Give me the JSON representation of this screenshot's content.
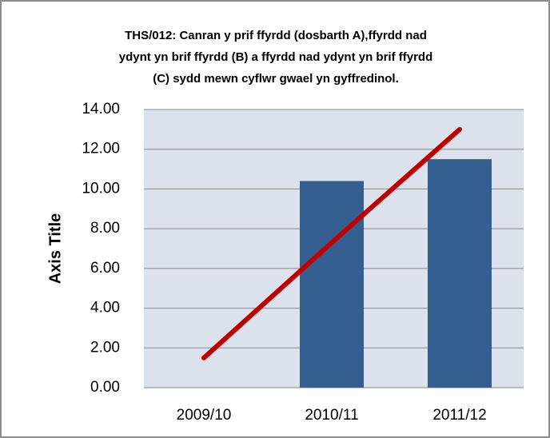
{
  "chart_data": {
    "type": "bar",
    "title": [
      "THS/012:  Canran y prif ffyrdd (dosbarth A),ffyrdd nad",
      "ydynt yn brif ffyrdd (B) a ffyrdd nad ydynt yn brif ffyrdd",
      "(C) sydd mewn cyflwr gwael yn gyffredinol."
    ],
    "y_axis_label": "Axis Title",
    "categories": [
      "2009/10",
      "2010/11",
      "2011/12"
    ],
    "series": [
      {
        "type": "bar",
        "color": "#355f91",
        "values": [
          null,
          10.4,
          11.5
        ]
      },
      {
        "type": "line",
        "color": "#c00000",
        "values": [
          1.5,
          7.3,
          13.0
        ]
      }
    ],
    "ylim": [
      0,
      14
    ],
    "yticks": [
      {
        "value": 0,
        "label": "0.00"
      },
      {
        "value": 2,
        "label": "2.00"
      },
      {
        "value": 4,
        "label": "4.00"
      },
      {
        "value": 6,
        "label": "6.00"
      },
      {
        "value": 8,
        "label": "8.00"
      },
      {
        "value": 10,
        "label": "10.00"
      },
      {
        "value": 12,
        "label": "12.00"
      },
      {
        "value": 14,
        "label": "14.00"
      }
    ],
    "grid": true
  }
}
